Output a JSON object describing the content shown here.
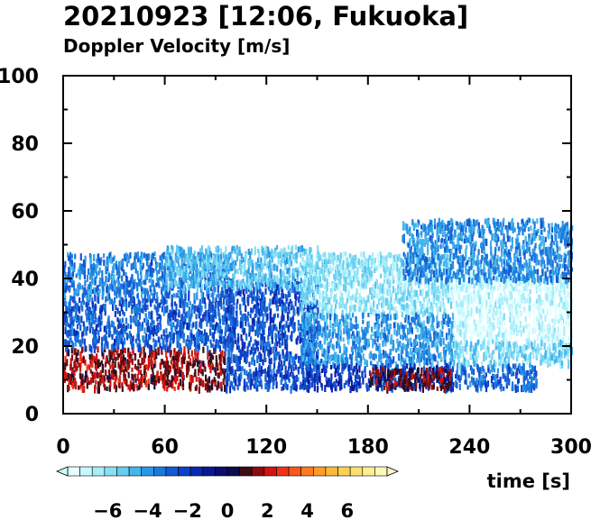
{
  "chart_data": {
    "type": "heatmap",
    "title": "20210923 [12:06, Fukuoka]",
    "subtitle": "Doppler Velocity [m/s]",
    "xlabel": "time [s]",
    "ylabel": "",
    "xlim": [
      0,
      300
    ],
    "ylim": [
      0,
      100
    ],
    "x_ticks": [
      0,
      60,
      120,
      180,
      240,
      300
    ],
    "y_ticks": [
      0,
      20,
      40,
      60,
      80,
      100
    ],
    "grid": false,
    "colorbar": {
      "ticks": [
        -6,
        -4,
        -2,
        0,
        2,
        4,
        6
      ],
      "range": [
        -8,
        8
      ],
      "colors": [
        "#e6ffff",
        "#c8f8ff",
        "#a8eefa",
        "#88e0f5",
        "#66cdf0",
        "#45b5ec",
        "#2c97e6",
        "#1c78dc",
        "#145ad2",
        "#0e3fc6",
        "#0a28b4",
        "#0a1896",
        "#0c0c6e",
        "#0c0c4a",
        "#3c0c14",
        "#8c0c0c",
        "#d21410",
        "#f03218",
        "#f7581c",
        "#fb7c20",
        "#fd9c28",
        "#fdb83a",
        "#fdd054",
        "#fee070",
        "#feee90",
        "#fef8b8"
      ],
      "low_end_color": "#c8ffff",
      "high_end_color": "#fff6c8"
    },
    "series": [
      {
        "values": [
          {
            "t_range": [
              0,
              95
            ],
            "h_range": [
              8,
              20
            ],
            "velocity": 1.5
          },
          {
            "t_range": [
              0,
              100
            ],
            "h_range": [
              20,
              35
            ],
            "velocity": -2.8
          },
          {
            "t_range": [
              0,
              100
            ],
            "h_range": [
              35,
              48
            ],
            "velocity": -3.5
          },
          {
            "t_range": [
              95,
              150
            ],
            "h_range": [
              8,
              40
            ],
            "velocity": -2.5
          },
          {
            "t_range": [
              60,
              150
            ],
            "h_range": [
              38,
              50
            ],
            "velocity": -5.0
          },
          {
            "t_range": [
              140,
              230
            ],
            "h_range": [
              30,
              48
            ],
            "velocity": -6.0
          },
          {
            "t_range": [
              140,
              230
            ],
            "h_range": [
              15,
              30
            ],
            "velocity": -4.0
          },
          {
            "t_range": [
              140,
              230
            ],
            "h_range": [
              8,
              15
            ],
            "velocity": -2.0
          },
          {
            "t_range": [
              180,
              230
            ],
            "h_range": [
              8,
              14
            ],
            "velocity": 1.2
          },
          {
            "t_range": [
              230,
              300
            ],
            "h_range": [
              22,
              42
            ],
            "velocity": -7.0
          },
          {
            "t_range": [
              230,
              300
            ],
            "h_range": [
              15,
              22
            ],
            "velocity": -5.5
          },
          {
            "t_range": [
              230,
              280
            ],
            "h_range": [
              8,
              15
            ],
            "velocity": -3.2
          },
          {
            "t_range": [
              200,
              300
            ],
            "h_range": [
              40,
              58
            ],
            "velocity": -3.8
          }
        ]
      }
    ]
  }
}
